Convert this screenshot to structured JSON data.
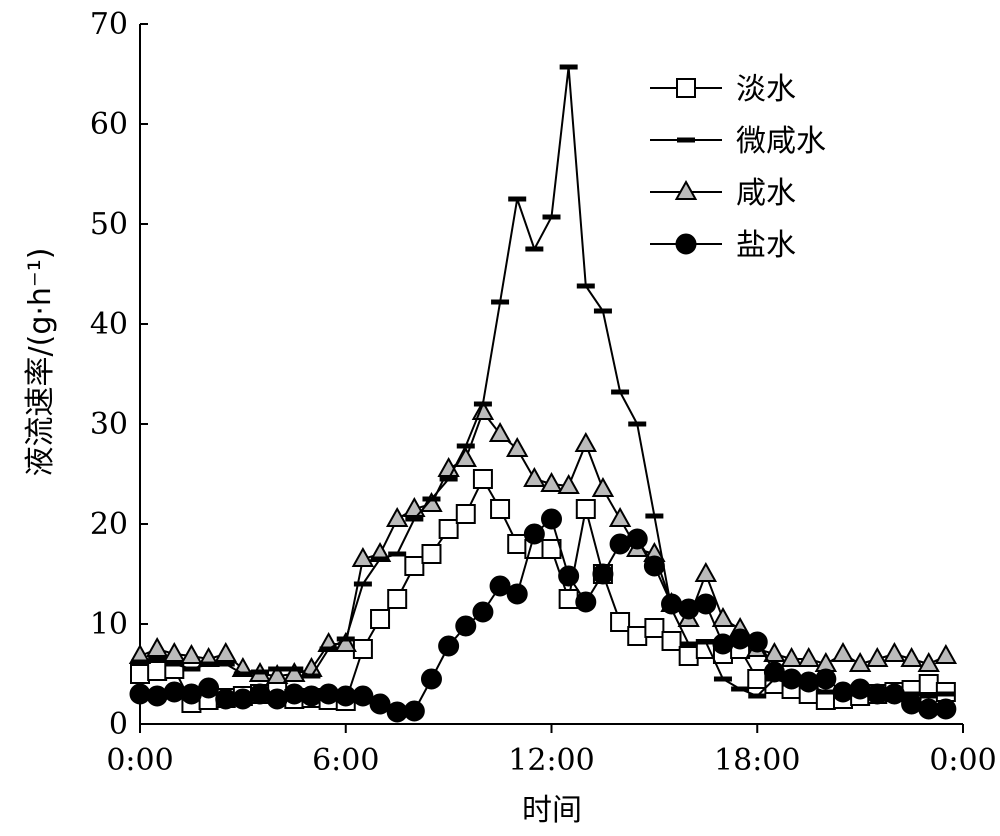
{
  "chart_data": {
    "type": "line",
    "title": "",
    "xlabel": "时间",
    "ylabel": "液流速率/(g·h⁻¹)",
    "x_ticks": [
      "0:00",
      "6:00",
      "12:00",
      "18:00",
      "0:00"
    ],
    "x_tick_hours": [
      0,
      6,
      12,
      18,
      24
    ],
    "xlim": [
      0,
      24
    ],
    "y_ticks": [
      "0",
      "10",
      "20",
      "30",
      "40",
      "50",
      "60",
      "70"
    ],
    "ylim": [
      0,
      70
    ],
    "grid": false,
    "legend_position": "top-right",
    "series": [
      {
        "name": "淡水",
        "marker": "square",
        "x": [
          0,
          0.5,
          1,
          1.5,
          2,
          2.5,
          3,
          3.5,
          4,
          4.5,
          5,
          5.5,
          6,
          6.5,
          7,
          7.5,
          8,
          8.5,
          9,
          9.5,
          10,
          10.5,
          11,
          11.5,
          12,
          12.5,
          13,
          13.5,
          14,
          14.5,
          15,
          15.5,
          16,
          16.5,
          17,
          17.5,
          18,
          18.5,
          19,
          19.5,
          20,
          20.5,
          21,
          21.5,
          22,
          22.5,
          23,
          23.5
        ],
        "y": [
          5.0,
          5.3,
          5.5,
          2.1,
          2.4,
          2.6,
          2.8,
          3.0,
          3.2,
          2.5,
          2.6,
          2.4,
          2.3,
          7.5,
          10.5,
          12.5,
          15.8,
          17.0,
          19.5,
          21.0,
          24.5,
          21.5,
          18.0,
          17.5,
          17.5,
          12.5,
          21.5,
          15.0,
          10.2,
          8.8,
          9.6,
          8.3,
          6.8,
          7.5,
          7.0,
          7.5,
          4.5,
          4.0,
          3.5,
          3.0,
          2.4,
          2.5,
          2.8,
          3.0,
          3.2,
          3.4,
          4.0,
          3.2
        ]
      },
      {
        "name": "微咸水",
        "marker": "dash",
        "x": [
          0,
          0.5,
          1,
          1.5,
          2,
          2.5,
          3,
          3.5,
          4,
          4.5,
          5,
          5.5,
          6,
          6.5,
          7,
          7.5,
          8,
          8.5,
          9,
          9.5,
          10,
          10.5,
          11,
          11.5,
          12,
          12.5,
          13,
          13.5,
          14,
          14.5,
          15,
          15.5,
          16,
          16.5,
          17,
          17.5,
          18,
          18.5,
          19,
          19.5,
          20,
          20.5,
          21,
          21.5,
          22,
          22.5,
          23,
          23.5
        ],
        "y": [
          6.2,
          6.5,
          6.0,
          5.5,
          6.0,
          6.0,
          5.0,
          5.2,
          5.5,
          5.5,
          4.8,
          7.5,
          8.5,
          14.0,
          16.5,
          17.0,
          20.5,
          22.5,
          24.5,
          27.8,
          32.0,
          42.2,
          52.5,
          47.5,
          50.7,
          65.7,
          43.8,
          41.3,
          33.2,
          30.0,
          20.8,
          11.5,
          8.0,
          8.2,
          4.5,
          3.5,
          2.8,
          4.5,
          4.0,
          3.8,
          3.2,
          3.0,
          3.0,
          3.5,
          3.0,
          3.0,
          2.8,
          3.0
        ]
      },
      {
        "name": "咸水",
        "marker": "triangle",
        "x": [
          0,
          0.5,
          1,
          1.5,
          2,
          2.5,
          3,
          3.5,
          4,
          4.5,
          5,
          5.5,
          6,
          6.5,
          7,
          7.5,
          8,
          8.5,
          9,
          9.5,
          10,
          10.5,
          11,
          11.5,
          12,
          12.5,
          13,
          13.5,
          14,
          14.5,
          15,
          15.5,
          16,
          16.5,
          17,
          17.5,
          18,
          18.5,
          19,
          19.5,
          20,
          20.5,
          21,
          21.5,
          22,
          22.5,
          23,
          23.5
        ],
        "y": [
          6.8,
          7.5,
          7.0,
          6.8,
          6.5,
          7.0,
          5.5,
          5.0,
          4.8,
          5.0,
          5.5,
          8.0,
          8.0,
          16.5,
          17.0,
          20.5,
          21.5,
          22.0,
          25.5,
          26.5,
          31.2,
          29.0,
          27.5,
          24.5,
          24.0,
          23.8,
          28.0,
          23.5,
          20.5,
          17.5,
          17.0,
          12.0,
          10.5,
          15.0,
          10.5,
          9.5,
          7.5,
          7.0,
          6.5,
          6.5,
          6.0,
          7.0,
          6.0,
          6.5,
          7.0,
          6.5,
          6.0,
          6.8
        ]
      },
      {
        "name": "盐水",
        "marker": "circle",
        "x": [
          0,
          0.5,
          1,
          1.5,
          2,
          2.5,
          3,
          3.5,
          4,
          4.5,
          5,
          5.5,
          6,
          6.5,
          7,
          7.5,
          8,
          8.5,
          9,
          9.5,
          10,
          10.5,
          11,
          11.5,
          12,
          12.5,
          13,
          13.5,
          14,
          14.5,
          15,
          15.5,
          16,
          16.5,
          17,
          17.5,
          18,
          18.5,
          19,
          19.5,
          20,
          20.5,
          21,
          21.5,
          22,
          22.5,
          23,
          23.5
        ],
        "y": [
          3.0,
          2.8,
          3.2,
          3.0,
          3.6,
          2.5,
          2.5,
          3.0,
          2.5,
          3.0,
          2.8,
          3.0,
          2.8,
          2.8,
          2.0,
          1.2,
          1.3,
          4.5,
          7.8,
          9.8,
          11.2,
          13.8,
          13.0,
          19.0,
          20.5,
          14.8,
          12.2,
          15.0,
          18.0,
          18.5,
          15.8,
          12.0,
          11.5,
          12.0,
          8.0,
          8.5,
          8.2,
          5.2,
          4.5,
          4.2,
          4.5,
          3.2,
          3.5,
          3.0,
          3.0,
          2.0,
          1.5,
          1.5
        ]
      }
    ]
  }
}
